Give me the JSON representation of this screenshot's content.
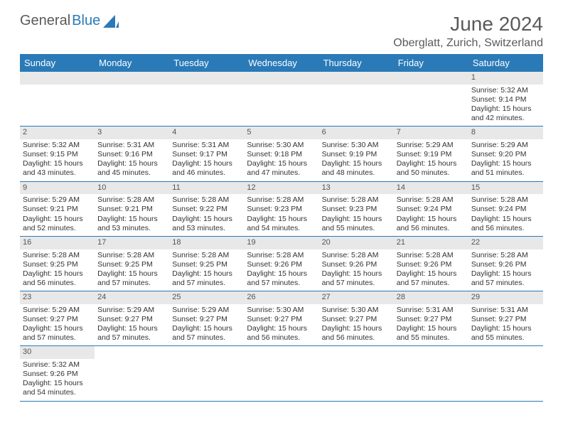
{
  "logo": {
    "text1": "General",
    "text2": "Blue"
  },
  "title": "June 2024",
  "location": "Oberglatt, Zurich, Switzerland",
  "colors": {
    "header_bg": "#2a7ab8",
    "header_text": "#ffffff",
    "daynum_bg": "#e8e8e8",
    "border": "#2a7ab8",
    "text": "#333333",
    "title_text": "#5a5a5a"
  },
  "day_labels": [
    "Sunday",
    "Monday",
    "Tuesday",
    "Wednesday",
    "Thursday",
    "Friday",
    "Saturday"
  ],
  "weeks": [
    [
      null,
      null,
      null,
      null,
      null,
      null,
      {
        "n": "1",
        "sr": "Sunrise: 5:32 AM",
        "ss": "Sunset: 9:14 PM",
        "d1": "Daylight: 15 hours",
        "d2": "and 42 minutes."
      }
    ],
    [
      {
        "n": "2",
        "sr": "Sunrise: 5:32 AM",
        "ss": "Sunset: 9:15 PM",
        "d1": "Daylight: 15 hours",
        "d2": "and 43 minutes."
      },
      {
        "n": "3",
        "sr": "Sunrise: 5:31 AM",
        "ss": "Sunset: 9:16 PM",
        "d1": "Daylight: 15 hours",
        "d2": "and 45 minutes."
      },
      {
        "n": "4",
        "sr": "Sunrise: 5:31 AM",
        "ss": "Sunset: 9:17 PM",
        "d1": "Daylight: 15 hours",
        "d2": "and 46 minutes."
      },
      {
        "n": "5",
        "sr": "Sunrise: 5:30 AM",
        "ss": "Sunset: 9:18 PM",
        "d1": "Daylight: 15 hours",
        "d2": "and 47 minutes."
      },
      {
        "n": "6",
        "sr": "Sunrise: 5:30 AM",
        "ss": "Sunset: 9:19 PM",
        "d1": "Daylight: 15 hours",
        "d2": "and 48 minutes."
      },
      {
        "n": "7",
        "sr": "Sunrise: 5:29 AM",
        "ss": "Sunset: 9:19 PM",
        "d1": "Daylight: 15 hours",
        "d2": "and 50 minutes."
      },
      {
        "n": "8",
        "sr": "Sunrise: 5:29 AM",
        "ss": "Sunset: 9:20 PM",
        "d1": "Daylight: 15 hours",
        "d2": "and 51 minutes."
      }
    ],
    [
      {
        "n": "9",
        "sr": "Sunrise: 5:29 AM",
        "ss": "Sunset: 9:21 PM",
        "d1": "Daylight: 15 hours",
        "d2": "and 52 minutes."
      },
      {
        "n": "10",
        "sr": "Sunrise: 5:28 AM",
        "ss": "Sunset: 9:21 PM",
        "d1": "Daylight: 15 hours",
        "d2": "and 53 minutes."
      },
      {
        "n": "11",
        "sr": "Sunrise: 5:28 AM",
        "ss": "Sunset: 9:22 PM",
        "d1": "Daylight: 15 hours",
        "d2": "and 53 minutes."
      },
      {
        "n": "12",
        "sr": "Sunrise: 5:28 AM",
        "ss": "Sunset: 9:23 PM",
        "d1": "Daylight: 15 hours",
        "d2": "and 54 minutes."
      },
      {
        "n": "13",
        "sr": "Sunrise: 5:28 AM",
        "ss": "Sunset: 9:23 PM",
        "d1": "Daylight: 15 hours",
        "d2": "and 55 minutes."
      },
      {
        "n": "14",
        "sr": "Sunrise: 5:28 AM",
        "ss": "Sunset: 9:24 PM",
        "d1": "Daylight: 15 hours",
        "d2": "and 56 minutes."
      },
      {
        "n": "15",
        "sr": "Sunrise: 5:28 AM",
        "ss": "Sunset: 9:24 PM",
        "d1": "Daylight: 15 hours",
        "d2": "and 56 minutes."
      }
    ],
    [
      {
        "n": "16",
        "sr": "Sunrise: 5:28 AM",
        "ss": "Sunset: 9:25 PM",
        "d1": "Daylight: 15 hours",
        "d2": "and 56 minutes."
      },
      {
        "n": "17",
        "sr": "Sunrise: 5:28 AM",
        "ss": "Sunset: 9:25 PM",
        "d1": "Daylight: 15 hours",
        "d2": "and 57 minutes."
      },
      {
        "n": "18",
        "sr": "Sunrise: 5:28 AM",
        "ss": "Sunset: 9:25 PM",
        "d1": "Daylight: 15 hours",
        "d2": "and 57 minutes."
      },
      {
        "n": "19",
        "sr": "Sunrise: 5:28 AM",
        "ss": "Sunset: 9:26 PM",
        "d1": "Daylight: 15 hours",
        "d2": "and 57 minutes."
      },
      {
        "n": "20",
        "sr": "Sunrise: 5:28 AM",
        "ss": "Sunset: 9:26 PM",
        "d1": "Daylight: 15 hours",
        "d2": "and 57 minutes."
      },
      {
        "n": "21",
        "sr": "Sunrise: 5:28 AM",
        "ss": "Sunset: 9:26 PM",
        "d1": "Daylight: 15 hours",
        "d2": "and 57 minutes."
      },
      {
        "n": "22",
        "sr": "Sunrise: 5:28 AM",
        "ss": "Sunset: 9:26 PM",
        "d1": "Daylight: 15 hours",
        "d2": "and 57 minutes."
      }
    ],
    [
      {
        "n": "23",
        "sr": "Sunrise: 5:29 AM",
        "ss": "Sunset: 9:27 PM",
        "d1": "Daylight: 15 hours",
        "d2": "and 57 minutes."
      },
      {
        "n": "24",
        "sr": "Sunrise: 5:29 AM",
        "ss": "Sunset: 9:27 PM",
        "d1": "Daylight: 15 hours",
        "d2": "and 57 minutes."
      },
      {
        "n": "25",
        "sr": "Sunrise: 5:29 AM",
        "ss": "Sunset: 9:27 PM",
        "d1": "Daylight: 15 hours",
        "d2": "and 57 minutes."
      },
      {
        "n": "26",
        "sr": "Sunrise: 5:30 AM",
        "ss": "Sunset: 9:27 PM",
        "d1": "Daylight: 15 hours",
        "d2": "and 56 minutes."
      },
      {
        "n": "27",
        "sr": "Sunrise: 5:30 AM",
        "ss": "Sunset: 9:27 PM",
        "d1": "Daylight: 15 hours",
        "d2": "and 56 minutes."
      },
      {
        "n": "28",
        "sr": "Sunrise: 5:31 AM",
        "ss": "Sunset: 9:27 PM",
        "d1": "Daylight: 15 hours",
        "d2": "and 55 minutes."
      },
      {
        "n": "29",
        "sr": "Sunrise: 5:31 AM",
        "ss": "Sunset: 9:27 PM",
        "d1": "Daylight: 15 hours",
        "d2": "and 55 minutes."
      }
    ],
    [
      {
        "n": "30",
        "sr": "Sunrise: 5:32 AM",
        "ss": "Sunset: 9:26 PM",
        "d1": "Daylight: 15 hours",
        "d2": "and 54 minutes."
      },
      null,
      null,
      null,
      null,
      null,
      null
    ]
  ]
}
